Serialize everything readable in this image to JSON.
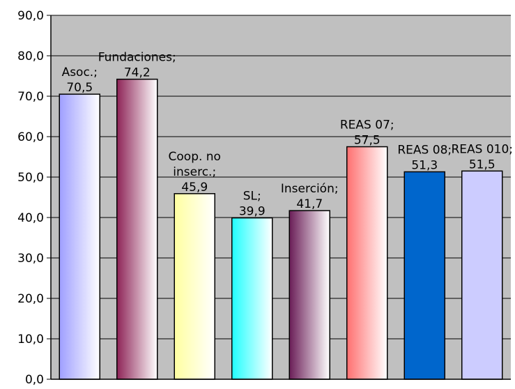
{
  "chart_data": {
    "type": "bar",
    "categories": [
      "Asoc.",
      "Fundaciones",
      "Coop. no inserc.",
      "SL",
      "Inserción",
      "REAS 07",
      "REAS 08",
      "REAS 010"
    ],
    "values": [
      70.5,
      74.2,
      45.9,
      39.9,
      41.7,
      57.5,
      51.3,
      51.5
    ],
    "data_labels": [
      [
        "Asoc.;",
        "70,5"
      ],
      [
        "Fundaciones;",
        "74,2"
      ],
      [
        "Coop. no",
        "inserc.;",
        "45,9"
      ],
      [
        "SL;",
        "39,9"
      ],
      [
        "Inserción;",
        "41,7"
      ],
      [
        "REAS 07;",
        "57,5"
      ],
      [
        "REAS 08;",
        "51,3"
      ],
      [
        "REAS 010;",
        "51,5"
      ]
    ],
    "ylim": [
      0,
      90
    ],
    "yticks": [
      0,
      10,
      20,
      30,
      40,
      50,
      60,
      70,
      80,
      90
    ],
    "ytick_labels": [
      "0,0",
      "10,0",
      "20,0",
      "30,0",
      "40,0",
      "50,0",
      "60,0",
      "70,0",
      "80,0",
      "90,0"
    ],
    "grid": true,
    "legend": "none",
    "plot_background": "#c0c0c0",
    "bar_colors": [
      [
        "#9f9fff",
        "#ffffff"
      ],
      [
        "#8e2457",
        "#ffffff"
      ],
      [
        "#ffffa0",
        "#ffffff"
      ],
      [
        "#20ffff",
        "#ffffff"
      ],
      [
        "#6a1d57",
        "#ffffff"
      ],
      [
        "#ff7070",
        "#ffffff"
      ],
      [
        "#0066cc",
        "#0066cc"
      ],
      [
        "#ccccff",
        "#ccccff"
      ]
    ]
  }
}
